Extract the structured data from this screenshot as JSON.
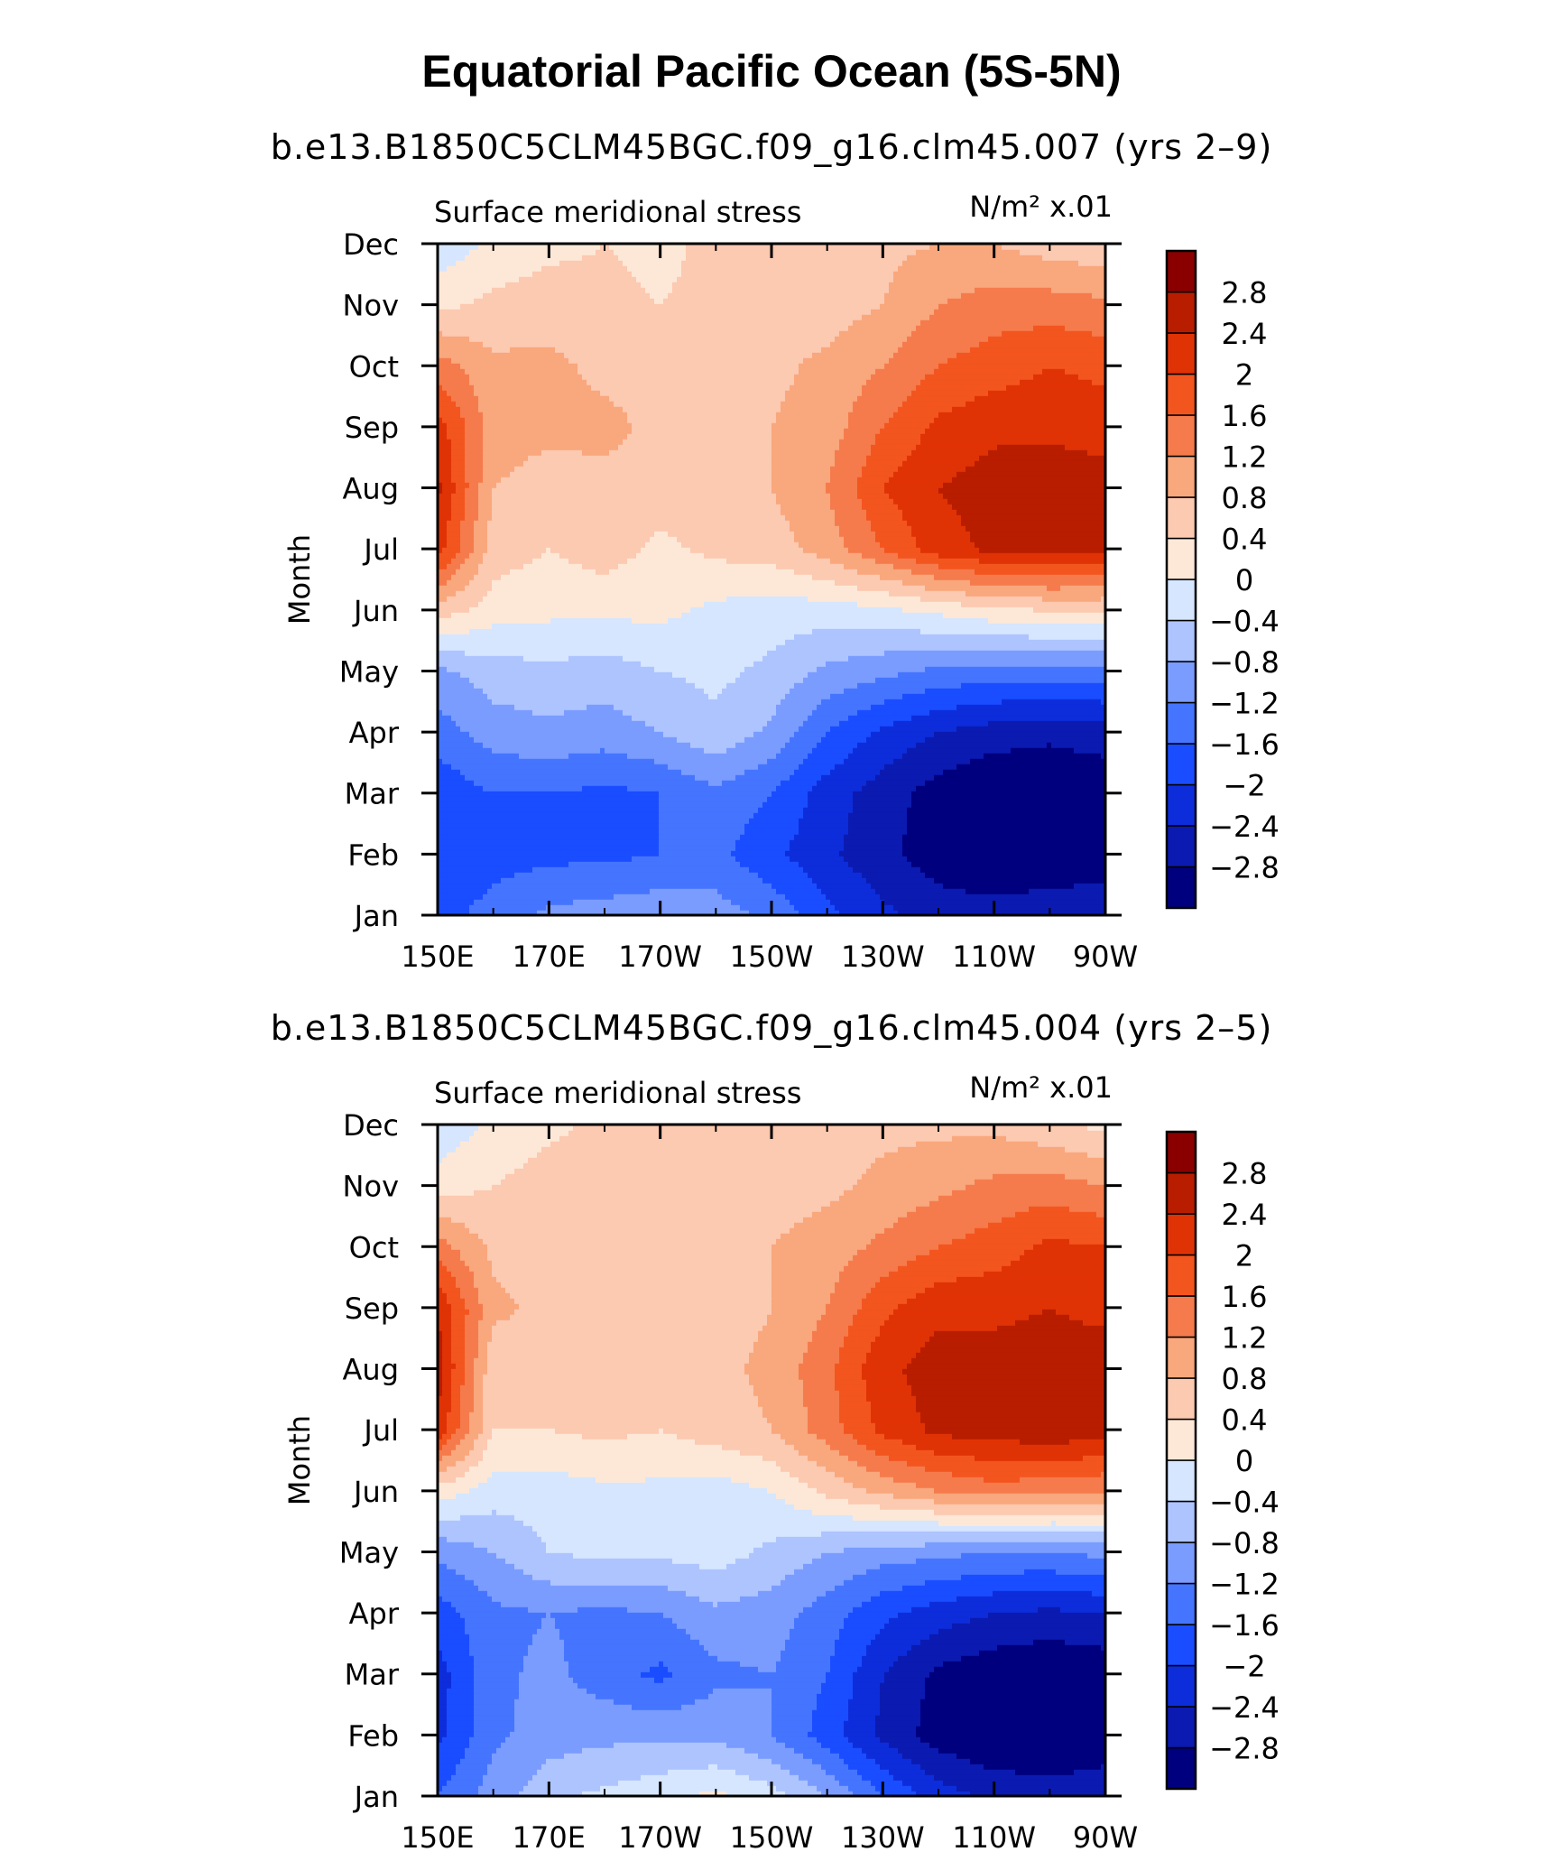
{
  "figure": {
    "title": "Equatorial Pacific Ocean (5S-5N)"
  },
  "colorbar": {
    "colors": [
      "#00007f",
      "#0b1ab0",
      "#0d2ddb",
      "#1a4dff",
      "#4575ff",
      "#7a9cff",
      "#aec4ff",
      "#d6e6ff",
      "#fde8d7",
      "#fcc9b1",
      "#f9a77d",
      "#f57b4c",
      "#f3551f",
      "#e03305",
      "#b81d00",
      "#8a0000"
    ],
    "level_labels": [
      "−2.8",
      "−2.4",
      "−2",
      "−1.6",
      "−1.2",
      "−0.8",
      "−0.4",
      "0",
      "0.4",
      "0.8",
      "1.2",
      "1.6",
      "2",
      "2.4",
      "2.8"
    ]
  },
  "chart_data": [
    {
      "type": "heatmap",
      "title": "b.e13.B1850C5CLM45BGC.f09_g16.clm45.007 (yrs 2–9)",
      "left_label": "Surface meridional stress",
      "right_label": "N/m² x.01",
      "ylabel": "Month",
      "xlabel": "",
      "x_ticks": [
        "150E",
        "170E",
        "170W",
        "150W",
        "130W",
        "110W",
        "90W"
      ],
      "x_lon": [
        150,
        170,
        190,
        210,
        230,
        250,
        270
      ],
      "xlim": [
        150,
        270
      ],
      "y_ticks": [
        "Jan",
        "Feb",
        "Mar",
        "Apr",
        "May",
        "Jun",
        "Jul",
        "Aug",
        "Sep",
        "Oct",
        "Nov",
        "Dec"
      ],
      "ylim": [
        1,
        12
      ],
      "levels": [
        -2.8,
        -2.4,
        -2.0,
        -1.6,
        -1.2,
        -0.8,
        -0.4,
        0,
        0.4,
        0.8,
        1.2,
        1.6,
        2.0,
        2.4,
        2.8
      ],
      "grid_lon": [
        150,
        160,
        170,
        180,
        190,
        200,
        210,
        220,
        230,
        240,
        250,
        260,
        270
      ],
      "grid_values": [
        [
          -1.8,
          -1.4,
          -1.1,
          -1.0,
          -0.9,
          -1.0,
          -1.3,
          -1.9,
          -2.3,
          -2.6,
          -2.6,
          -2.5,
          -2.4
        ],
        [
          -2.0,
          -1.8,
          -1.7,
          -1.7,
          -1.6,
          -1.5,
          -1.9,
          -2.3,
          -2.7,
          -3.0,
          -3.2,
          -3.2,
          -3.1
        ],
        [
          -1.9,
          -1.6,
          -1.6,
          -1.7,
          -1.6,
          -1.3,
          -1.6,
          -2.2,
          -2.6,
          -3.0,
          -3.2,
          -3.2,
          -3.1
        ],
        [
          -1.4,
          -1.0,
          -0.9,
          -1.0,
          -0.8,
          -0.5,
          -0.9,
          -1.6,
          -2.1,
          -2.4,
          -2.6,
          -2.7,
          -2.6
        ],
        [
          -0.9,
          -0.6,
          -0.5,
          -0.6,
          -0.4,
          -0.3,
          -0.5,
          -0.9,
          -1.1,
          -1.3,
          -1.4,
          -1.4,
          -1.4
        ],
        [
          0.6,
          0.2,
          0.1,
          0.1,
          0.1,
          -0.1,
          -0.2,
          -0.2,
          -0.1,
          0.1,
          0.3,
          0.4,
          0.4
        ],
        [
          2.2,
          0.6,
          0.4,
          0.6,
          0.3,
          0.5,
          0.6,
          1.0,
          1.6,
          2.2,
          2.5,
          2.6,
          2.5
        ],
        [
          2.5,
          0.8,
          0.6,
          0.7,
          0.6,
          0.7,
          0.8,
          1.2,
          2.0,
          2.4,
          2.6,
          2.7,
          2.6
        ],
        [
          2.2,
          1.0,
          0.9,
          0.9,
          0.7,
          0.7,
          0.8,
          1.0,
          1.6,
          2.1,
          2.3,
          2.3,
          2.2
        ],
        [
          1.4,
          0.9,
          0.9,
          0.7,
          0.7,
          0.6,
          0.7,
          0.9,
          1.2,
          1.6,
          1.8,
          2.0,
          1.9
        ],
        [
          0.3,
          0.5,
          0.6,
          0.5,
          0.4,
          0.5,
          0.6,
          0.6,
          0.8,
          1.2,
          1.4,
          1.4,
          1.3
        ],
        [
          -0.3,
          0.1,
          0.3,
          0.4,
          0.3,
          0.5,
          0.5,
          0.6,
          0.7,
          0.8,
          0.8,
          0.6,
          0.5
        ]
      ]
    },
    {
      "type": "heatmap",
      "title": "b.e13.B1850C5CLM45BGC.f09_g16.clm45.004 (yrs 2–5)",
      "left_label": "Surface meridional stress",
      "right_label": "N/m² x.01",
      "ylabel": "Month",
      "xlabel": "",
      "x_ticks": [
        "150E",
        "170E",
        "170W",
        "150W",
        "130W",
        "110W",
        "90W"
      ],
      "x_lon": [
        150,
        170,
        190,
        210,
        230,
        250,
        270
      ],
      "xlim": [
        150,
        270
      ],
      "y_ticks": [
        "Jan",
        "Feb",
        "Mar",
        "Apr",
        "May",
        "Jun",
        "Jul",
        "Aug",
        "Sep",
        "Oct",
        "Nov",
        "Dec"
      ],
      "ylim": [
        1,
        12
      ],
      "levels": [
        -2.8,
        -2.4,
        -2.0,
        -1.6,
        -1.2,
        -0.8,
        -0.4,
        0,
        0.4,
        0.8,
        1.2,
        1.6,
        2.0,
        2.4,
        2.8
      ],
      "grid_lon": [
        150,
        160,
        170,
        180,
        190,
        200,
        210,
        220,
        230,
        240,
        250,
        260,
        270
      ],
      "grid_values": [
        [
          -1.6,
          -1.0,
          -0.5,
          -0.3,
          -0.1,
          0.1,
          -0.2,
          -0.8,
          -1.6,
          -2.2,
          -2.5,
          -2.6,
          -2.5
        ],
        [
          -2.1,
          -1.3,
          -1.0,
          -0.9,
          -0.9,
          -0.9,
          -1.2,
          -1.8,
          -2.5,
          -3.0,
          -3.2,
          -3.2,
          -3.1
        ],
        [
          -2.2,
          -1.3,
          -1.1,
          -1.4,
          -1.7,
          -1.3,
          -1.2,
          -1.6,
          -2.4,
          -2.9,
          -3.1,
          -3.2,
          -3.1
        ],
        [
          -1.8,
          -1.3,
          -1.2,
          -1.3,
          -1.2,
          -0.9,
          -1.0,
          -1.4,
          -1.9,
          -2.2,
          -2.4,
          -2.5,
          -2.4
        ],
        [
          -1.1,
          -0.8,
          -0.4,
          -0.3,
          -0.3,
          -0.2,
          -0.5,
          -0.8,
          -1.0,
          -1.1,
          -1.2,
          -1.2,
          -1.1
        ],
        [
          0.2,
          -0.2,
          -0.2,
          -0.1,
          -0.1,
          -0.2,
          0.0,
          0.5,
          0.9,
          1.2,
          1.4,
          1.3,
          1.2
        ],
        [
          2.3,
          0.4,
          0.4,
          0.5,
          0.4,
          0.6,
          0.8,
          1.4,
          2.1,
          2.5,
          2.6,
          2.7,
          2.6
        ],
        [
          2.6,
          0.5,
          0.6,
          0.6,
          0.6,
          0.7,
          0.9,
          1.5,
          2.3,
          2.6,
          2.6,
          2.6,
          2.6
        ],
        [
          2.4,
          0.9,
          0.7,
          0.6,
          0.6,
          0.6,
          0.8,
          1.2,
          1.9,
          2.3,
          2.3,
          2.4,
          2.3
        ],
        [
          1.4,
          0.7,
          0.6,
          0.5,
          0.5,
          0.5,
          0.8,
          1.0,
          1.3,
          1.6,
          1.8,
          2.1,
          2.0
        ],
        [
          0.2,
          0.4,
          0.6,
          0.6,
          0.6,
          0.6,
          0.6,
          0.7,
          0.9,
          1.1,
          1.3,
          1.4,
          1.2
        ],
        [
          -0.3,
          0.1,
          0.3,
          0.5,
          0.5,
          0.6,
          0.6,
          0.6,
          0.7,
          0.7,
          0.7,
          0.5,
          0.3
        ]
      ]
    }
  ]
}
